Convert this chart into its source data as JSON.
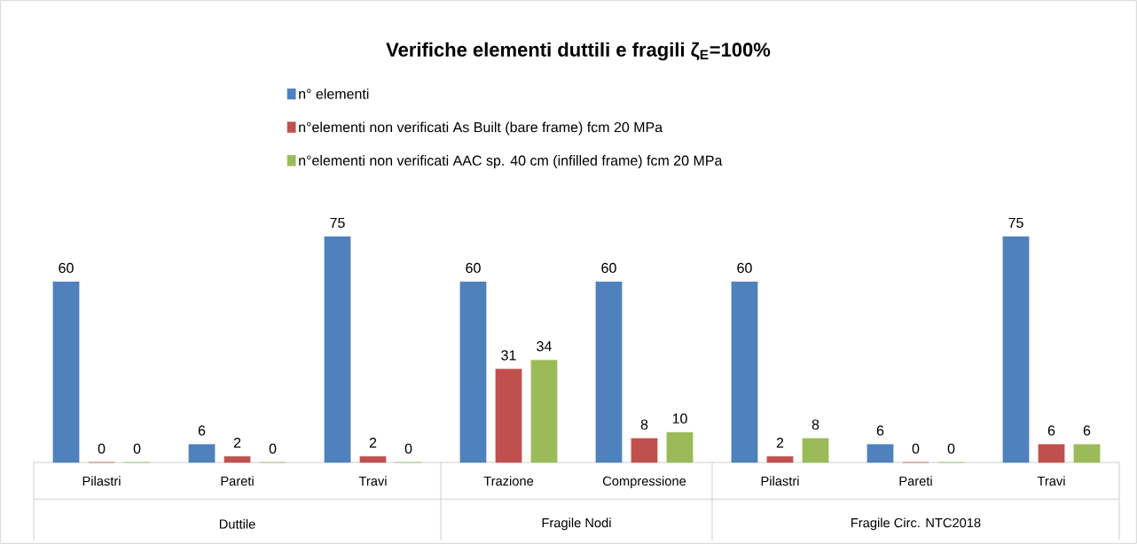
{
  "chart_data": {
    "type": "bar",
    "title": "Verifiche elementi duttili e fragili ζ$_{E}$=100%",
    "categories": [
      "Pilastri",
      "Pareti",
      "Travi",
      "Trazione",
      "Compressione",
      "Pilastri",
      "Pareti",
      "Travi"
    ],
    "series": [
      {
        "name": "n° elementi",
        "color": "#4f81bd",
        "values": [
          60,
          6,
          75,
          60,
          60,
          60,
          6,
          75
        ]
      },
      {
        "name": "n°elementi non verificati As Built (bare frame) fcm 20 MPa",
        "color": "#c0504d",
        "values": [
          0,
          2,
          2,
          31,
          8,
          2,
          0,
          6
        ]
      },
      {
        "name": "n°elementi non verificati AAC sp. 40 cm (infilled frame) fcm 20 MPa",
        "color": "#9bbb59",
        "values": [
          0,
          0,
          0,
          34,
          10,
          8,
          0,
          6
        ]
      }
    ],
    "annotations": [
      "Duttile",
      "Fragile Nodi",
      "Fragile Circ. NTC2018"
    ],
    "data_labels": true,
    "legend": "top"
  }
}
